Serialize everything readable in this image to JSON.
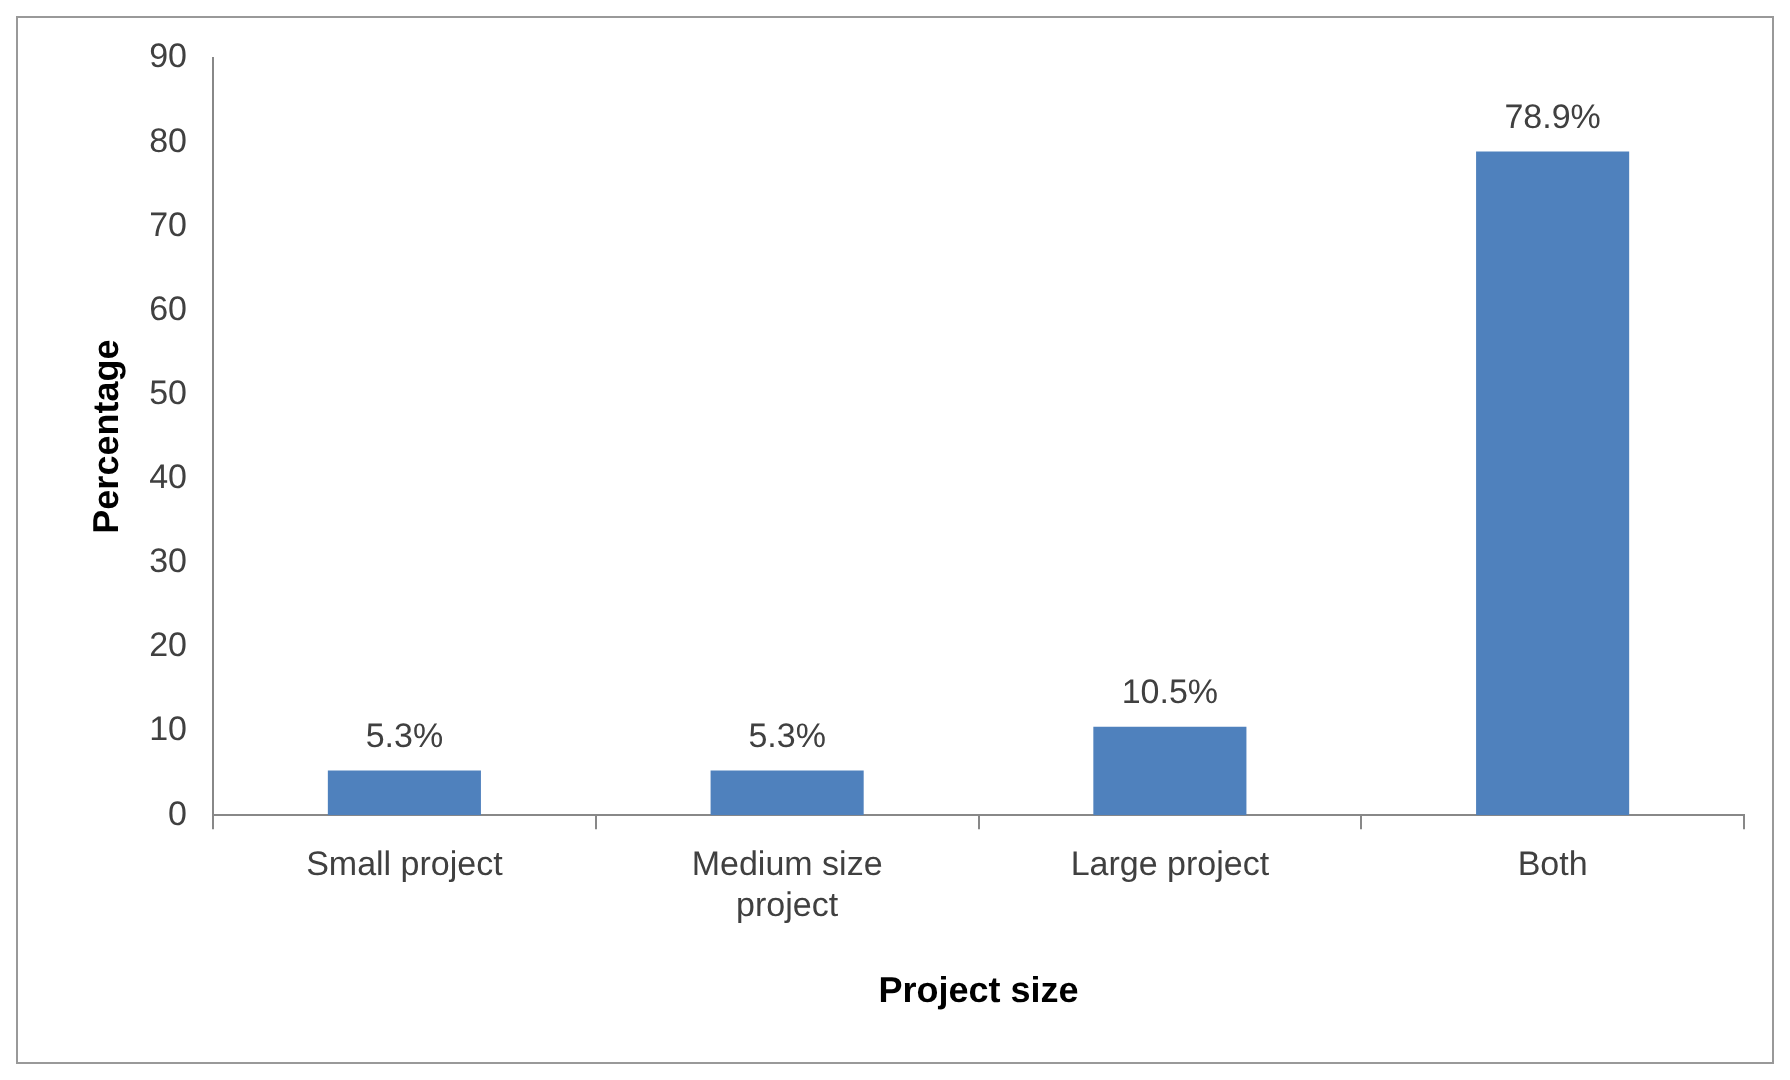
{
  "chart_data": {
    "type": "bar",
    "xlabel": "Project size",
    "ylabel": "Percentage",
    "categories": [
      "Small project",
      "Medium size project",
      "Large project",
      "Both"
    ],
    "values": [
      5.3,
      5.3,
      10.5,
      78.9
    ],
    "value_labels": [
      "5.3%",
      "5.3%",
      "10.5%",
      "78.9%"
    ],
    "color": "#4f81bd",
    "ylim": [
      0,
      90
    ],
    "yticks": [
      0,
      10,
      20,
      30,
      40,
      50,
      60,
      70,
      80,
      90
    ],
    "grid": false,
    "legend": false
  }
}
